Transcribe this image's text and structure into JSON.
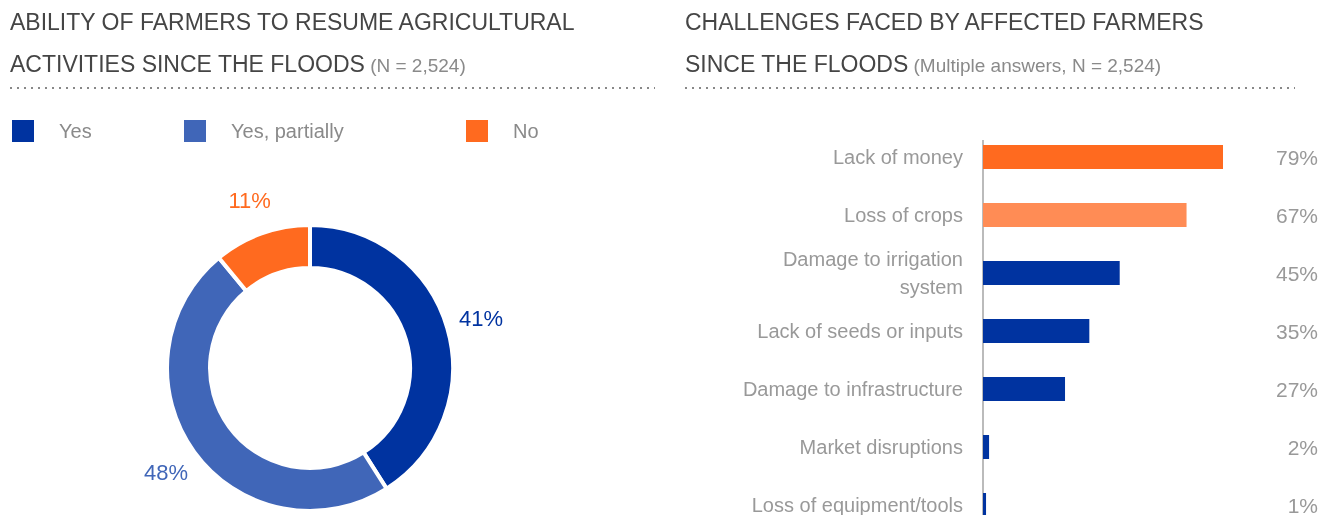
{
  "chart_data": [
    {
      "type": "donut",
      "title": "ABILITY OF FARMERS TO RESUME AGRICULTURAL ACTIVITIES SINCE THE FLOODS",
      "subtitle": "(N = 2,524)",
      "categories": [
        "Yes",
        "Yes, partially",
        "No"
      ],
      "values": [
        41,
        48,
        11
      ],
      "value_labels": [
        "41%",
        "48%",
        "11%"
      ],
      "colors": [
        "#0033a0",
        "#4066b8",
        "#ff6a1f"
      ],
      "legend": "top"
    },
    {
      "type": "bar",
      "orientation": "horizontal",
      "title": "CHALLENGES FACED BY AFFECTED FARMERS SINCE THE FLOODS",
      "subtitle": "(Multiple answers, N = 2,524)",
      "categories": [
        "Lack of money",
        "Loss of crops",
        "Damage to irrigation system",
        "Lack of seeds or inputs",
        "Damage to infrastructure",
        "Market disruptions",
        "Loss of equipment/tools"
      ],
      "values": [
        79,
        67,
        45,
        35,
        27,
        2,
        1
      ],
      "value_labels": [
        "79%",
        "67%",
        "45%",
        "35%",
        "27%",
        "2%",
        "1%"
      ],
      "colors": [
        "#ff6a1f",
        "#ff8c55",
        "#0033a0",
        "#0033a0",
        "#0033a0",
        "#0033a0",
        "#0033a0"
      ]
    }
  ]
}
